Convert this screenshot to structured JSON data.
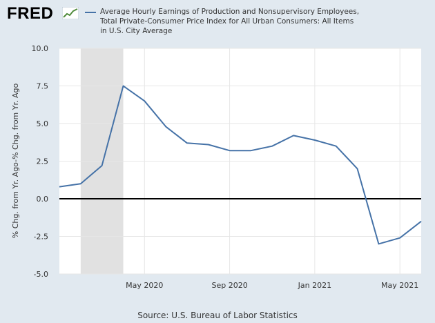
{
  "logo": {
    "text": "FRED"
  },
  "legend": {
    "color": "#4572a7",
    "text": "Average Hourly Earnings of Production and Nonsupervisory Employees, Total Private-Consumer Price Index for All Urban Consumers: All Items in U.S. City Average"
  },
  "source": "Source: U.S. Bureau of Labor Statistics",
  "chart_data": {
    "type": "line",
    "title": "",
    "ylabel": "% Chg. from Yr. Ago-% Chg. from Yr. Ago",
    "xlabel": "",
    "ylim": [
      -5.0,
      10.0
    ],
    "yticks": [
      10.0,
      7.5,
      5.0,
      2.5,
      0.0,
      -2.5,
      -5.0
    ],
    "ytick_labels": [
      "10.0",
      "7.5",
      "5.0",
      "2.5",
      "0.0",
      "-2.5",
      "-5.0"
    ],
    "xlim": [
      "2020-01-01",
      "2021-06-01"
    ],
    "xticks": [
      "2020-05-01",
      "2020-09-01",
      "2021-01-01",
      "2021-05-01"
    ],
    "xtick_labels": [
      "May 2020",
      "Sep 2020",
      "Jan 2021",
      "May 2021"
    ],
    "recession_shading": [
      "2020-02-01",
      "2020-04-01"
    ],
    "zero_line": true,
    "grid": true,
    "series": [
      {
        "color": "#4572a7",
        "x": [
          "2020-01-01",
          "2020-02-01",
          "2020-03-01",
          "2020-04-01",
          "2020-05-01",
          "2020-06-01",
          "2020-07-01",
          "2020-08-01",
          "2020-09-01",
          "2020-10-01",
          "2020-11-01",
          "2020-12-01",
          "2021-01-01",
          "2021-02-01",
          "2021-03-01",
          "2021-04-01",
          "2021-05-01",
          "2021-06-01"
        ],
        "values": [
          0.8,
          1.0,
          2.2,
          7.5,
          6.5,
          4.8,
          3.7,
          3.6,
          3.2,
          3.2,
          3.5,
          4.2,
          3.9,
          3.5,
          2.0,
          -3.0,
          -2.6,
          -1.5
        ]
      }
    ]
  }
}
